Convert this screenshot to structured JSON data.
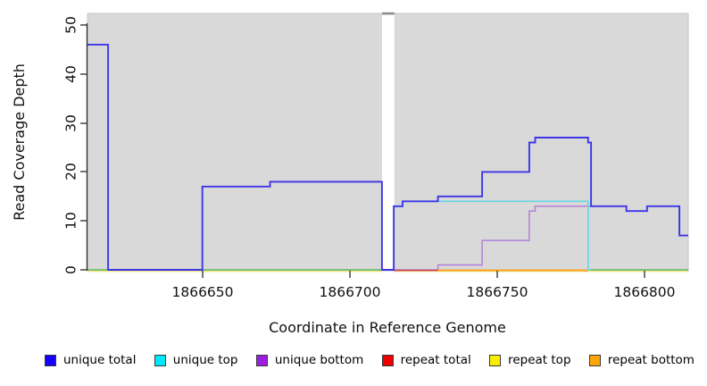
{
  "chart_data": {
    "type": "step-line",
    "title": "",
    "xlabel": "Coordinate in Reference Genome",
    "ylabel": "Read Coverage Depth",
    "xlim": [
      1866611,
      1866815
    ],
    "ylim": [
      0,
      52
    ],
    "xtick_labels": [
      "1866650",
      "1866700",
      "1866750",
      "1866800"
    ],
    "ytick_labels": [
      "0",
      "10",
      "20",
      "30",
      "40",
      "50"
    ],
    "grid": "none",
    "panel_bg": "#d9d9d9",
    "background": "#ffffff",
    "no_data_gap": [
      1866711,
      1866715.2
    ],
    "series": [
      {
        "name": "repeat top",
        "color": "#efe48a",
        "segments": [
          [
            1866611,
            1866711,
            0
          ],
          [
            1866715,
            1866815,
            0
          ]
        ]
      },
      {
        "name": "unique bottom",
        "color": "#b27fd8",
        "segments": [
          [
            1866715,
            1866730,
            0
          ],
          [
            1866730,
            1866745,
            1
          ],
          [
            1866745,
            1866761,
            6
          ],
          [
            1866761,
            1866763,
            12
          ],
          [
            1866763,
            1866794,
            13
          ],
          [
            1866794,
            1866801,
            12
          ],
          [
            1866801,
            1866812,
            13
          ],
          [
            1866812,
            1866815,
            7
          ]
        ]
      },
      {
        "name": "repeat total",
        "color": "#d04050",
        "segments": [
          [
            1866715,
            1866781,
            0
          ]
        ]
      },
      {
        "name": "repeat bottom",
        "color": "#ff9f1c",
        "segments": [
          [
            1866730,
            1866781,
            0
          ]
        ]
      },
      {
        "name": "zero baseline",
        "color": "#58b768",
        "segments": [
          [
            1866611,
            1866711,
            0
          ],
          [
            1866781,
            1866815,
            0
          ]
        ]
      },
      {
        "name": "unique top",
        "color": "#64d8e8",
        "segments": [
          [
            1866715,
            1866718,
            13
          ],
          [
            1866718,
            1866781,
            14
          ],
          [
            1866781,
            1866782,
            0
          ]
        ]
      },
      {
        "name": "unique total",
        "color": "#3e35e8",
        "segments": [
          [
            1866611,
            1866618,
            46
          ],
          [
            1866618,
            1866650,
            0
          ],
          [
            1866650,
            1866673,
            17
          ],
          [
            1866673,
            1866711,
            18
          ],
          [
            1866711,
            1866715,
            0
          ],
          [
            1866715,
            1866718,
            13
          ],
          [
            1866718,
            1866730,
            14
          ],
          [
            1866730,
            1866745,
            15
          ],
          [
            1866745,
            1866761,
            20
          ],
          [
            1866761,
            1866763,
            26
          ],
          [
            1866763,
            1866781,
            27
          ],
          [
            1866781,
            1866782,
            26
          ],
          [
            1866782,
            1866794,
            13
          ],
          [
            1866794,
            1866801,
            12
          ],
          [
            1866801,
            1866812,
            13
          ],
          [
            1866812,
            1866815,
            7
          ]
        ]
      }
    ],
    "legend_position": "bottom",
    "legend": [
      {
        "label": "unique total",
        "color": "#1400ff"
      },
      {
        "label": "unique top",
        "color": "#00e8ff"
      },
      {
        "label": "unique bottom",
        "color": "#9d1ee0"
      },
      {
        "label": "repeat total",
        "color": "#ee0000"
      },
      {
        "label": "repeat top",
        "color": "#fced00"
      },
      {
        "label": "repeat bottom",
        "color": "#ffa408"
      }
    ]
  }
}
